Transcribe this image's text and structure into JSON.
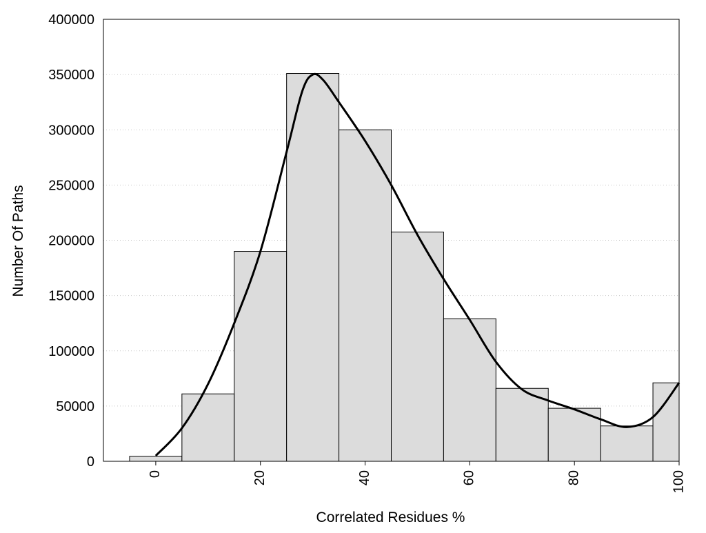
{
  "chart_data": {
    "type": "bar",
    "title": "",
    "xlabel": "Correlated Residues %",
    "ylabel": "Number Of Paths",
    "x_bin_centers": [
      0,
      10,
      20,
      30,
      40,
      50,
      60,
      70,
      80,
      90,
      100
    ],
    "values": [
      4500,
      61000,
      190000,
      351000,
      300000,
      207500,
      129000,
      66000,
      48000,
      32000,
      71000
    ],
    "bin_width": 10,
    "xlim": [
      -10,
      100
    ],
    "ylim": [
      0,
      400000
    ],
    "x_ticks": [
      0,
      20,
      40,
      60,
      80,
      100
    ],
    "x_tick_labels": [
      "0",
      "20",
      "40",
      "60",
      "80",
      "100"
    ],
    "y_ticks": [
      0,
      50000,
      100000,
      150000,
      200000,
      250000,
      300000,
      350000,
      400000
    ],
    "y_tick_labels": [
      "0",
      "50000",
      "100000",
      "150000",
      "200000",
      "250000",
      "300000",
      "350000",
      "400000"
    ],
    "series": [
      {
        "type": "line",
        "x": [
          0,
          5,
          10,
          15,
          20,
          25,
          28,
          30,
          32,
          35,
          40,
          45,
          50,
          55,
          60,
          65,
          70,
          75,
          80,
          85,
          90,
          95,
          100
        ],
        "y": [
          5000,
          30000,
          70000,
          125000,
          190000,
          280000,
          335000,
          350000,
          345000,
          325000,
          290000,
          250000,
          205000,
          165000,
          128000,
          90000,
          65000,
          55000,
          47000,
          38000,
          31000,
          40000,
          71000
        ]
      }
    ],
    "grid": "horizontal-dotted",
    "bar_color": "#dcdcdc",
    "bar_edge_color": "#000000",
    "line_color": "#000000"
  }
}
